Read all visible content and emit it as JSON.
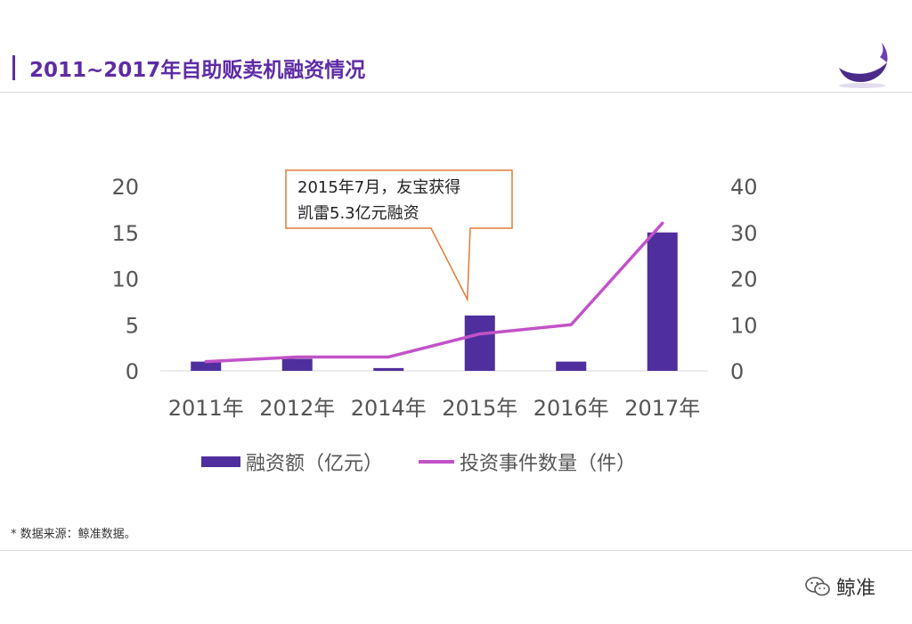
{
  "header": {
    "title": "2011~2017年自助贩卖机融资情况",
    "accent_color": "#5e2ca5",
    "logo_icon": "whale-icon"
  },
  "chart_data": {
    "type": "bar",
    "categories": [
      "2011年",
      "2012年",
      "2014年",
      "2015年",
      "2016年",
      "2017年"
    ],
    "series": [
      {
        "name": "融资额（亿元）",
        "type": "bar",
        "axis": "left",
        "color": "#4f2f9e",
        "values": [
          1,
          1.3,
          0.3,
          6,
          1,
          15
        ]
      },
      {
        "name": "投资事件数量（件）",
        "type": "line",
        "axis": "right",
        "color": "#c252c8",
        "values": [
          2,
          3,
          3,
          8,
          10,
          32
        ]
      }
    ],
    "left_axis": {
      "ticks": [
        "0",
        "5",
        "10",
        "15",
        "20"
      ],
      "ylim": [
        0,
        20
      ]
    },
    "right_axis": {
      "ticks": [
        "0",
        "10",
        "20",
        "30",
        "40"
      ],
      "ylim": [
        0,
        40
      ]
    },
    "grid": false,
    "legend_position": "bottom",
    "annotation": {
      "line1": "2015年7月，友宝获得",
      "line2": "凯雷5.3亿元融资",
      "target_category": "2015年",
      "border_color": "#e07b39"
    }
  },
  "footer": {
    "source": "* 数据来源：鲸准数据。",
    "brand": "鲸准",
    "brand_icon": "wechat-icon"
  }
}
